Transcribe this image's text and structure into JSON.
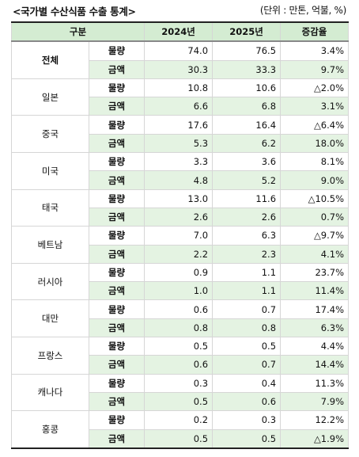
{
  "title": "<국가별 수산식품 수출 통계>",
  "unit": "(단위 : 만톤, 억불, %)",
  "headers": [
    "구분",
    "2024년",
    "2025년",
    "증감율"
  ],
  "rows": [
    {
      "region": "전체",
      "bold": true,
      "volume": {
        "label": "물량",
        "y2024": "74.0",
        "y2025": "76.5",
        "change": "3.4%"
      },
      "amount": {
        "label": "금액",
        "y2024": "30.3",
        "y2025": "33.3",
        "change": "9.7%"
      }
    },
    {
      "region": "일본",
      "bold": false,
      "volume": {
        "label": "물량",
        "y2024": "10.8",
        "y2025": "10.6",
        "change": "△2.0%"
      },
      "amount": {
        "label": "금액",
        "y2024": "6.6",
        "y2025": "6.8",
        "change": "3.1%"
      }
    },
    {
      "region": "중국",
      "bold": false,
      "volume": {
        "label": "물량",
        "y2024": "17.6",
        "y2025": "16.4",
        "change": "△6.4%"
      },
      "amount": {
        "label": "금액",
        "y2024": "5.3",
        "y2025": "6.2",
        "change": "18.0%"
      }
    },
    {
      "region": "미국",
      "bold": false,
      "volume": {
        "label": "물량",
        "y2024": "3.3",
        "y2025": "3.6",
        "change": "8.1%"
      },
      "amount": {
        "label": "금액",
        "y2024": "4.8",
        "y2025": "5.2",
        "change": "9.0%"
      }
    },
    {
      "region": "태국",
      "bold": false,
      "volume": {
        "label": "물량",
        "y2024": "13.0",
        "y2025": "11.6",
        "change": "△10.5%"
      },
      "amount": {
        "label": "금액",
        "y2024": "2.6",
        "y2025": "2.6",
        "change": "0.7%"
      }
    },
    {
      "region": "베트남",
      "bold": false,
      "volume": {
        "label": "물량",
        "y2024": "7.0",
        "y2025": "6.3",
        "change": "△9.7%"
      },
      "amount": {
        "label": "금액",
        "y2024": "2.2",
        "y2025": "2.3",
        "change": "4.1%"
      }
    },
    {
      "region": "러시아",
      "bold": false,
      "volume": {
        "label": "물량",
        "y2024": "0.9",
        "y2025": "1.1",
        "change": "23.7%"
      },
      "amount": {
        "label": "금액",
        "y2024": "1.0",
        "y2025": "1.1",
        "change": "11.4%"
      }
    },
    {
      "region": "대만",
      "bold": false,
      "volume": {
        "label": "물량",
        "y2024": "0.6",
        "y2025": "0.7",
        "change": "17.4%"
      },
      "amount": {
        "label": "금액",
        "y2024": "0.8",
        "y2025": "0.8",
        "change": "6.3%"
      }
    },
    {
      "region": "프랑스",
      "bold": false,
      "volume": {
        "label": "물량",
        "y2024": "0.5",
        "y2025": "0.5",
        "change": "4.4%"
      },
      "amount": {
        "label": "금액",
        "y2024": "0.6",
        "y2025": "0.7",
        "change": "14.4%"
      }
    },
    {
      "region": "캐나다",
      "bold": false,
      "volume": {
        "label": "물량",
        "y2024": "0.3",
        "y2025": "0.4",
        "change": "11.3%"
      },
      "amount": {
        "label": "금액",
        "y2024": "0.5",
        "y2025": "0.6",
        "change": "7.9%"
      }
    },
    {
      "region": "홍콩",
      "bold": false,
      "volume": {
        "label": "물량",
        "y2024": "0.2",
        "y2025": "0.3",
        "change": "12.2%"
      },
      "amount": {
        "label": "금액",
        "y2024": "0.5",
        "y2025": "0.5",
        "change": "△1.9%"
      }
    }
  ]
}
